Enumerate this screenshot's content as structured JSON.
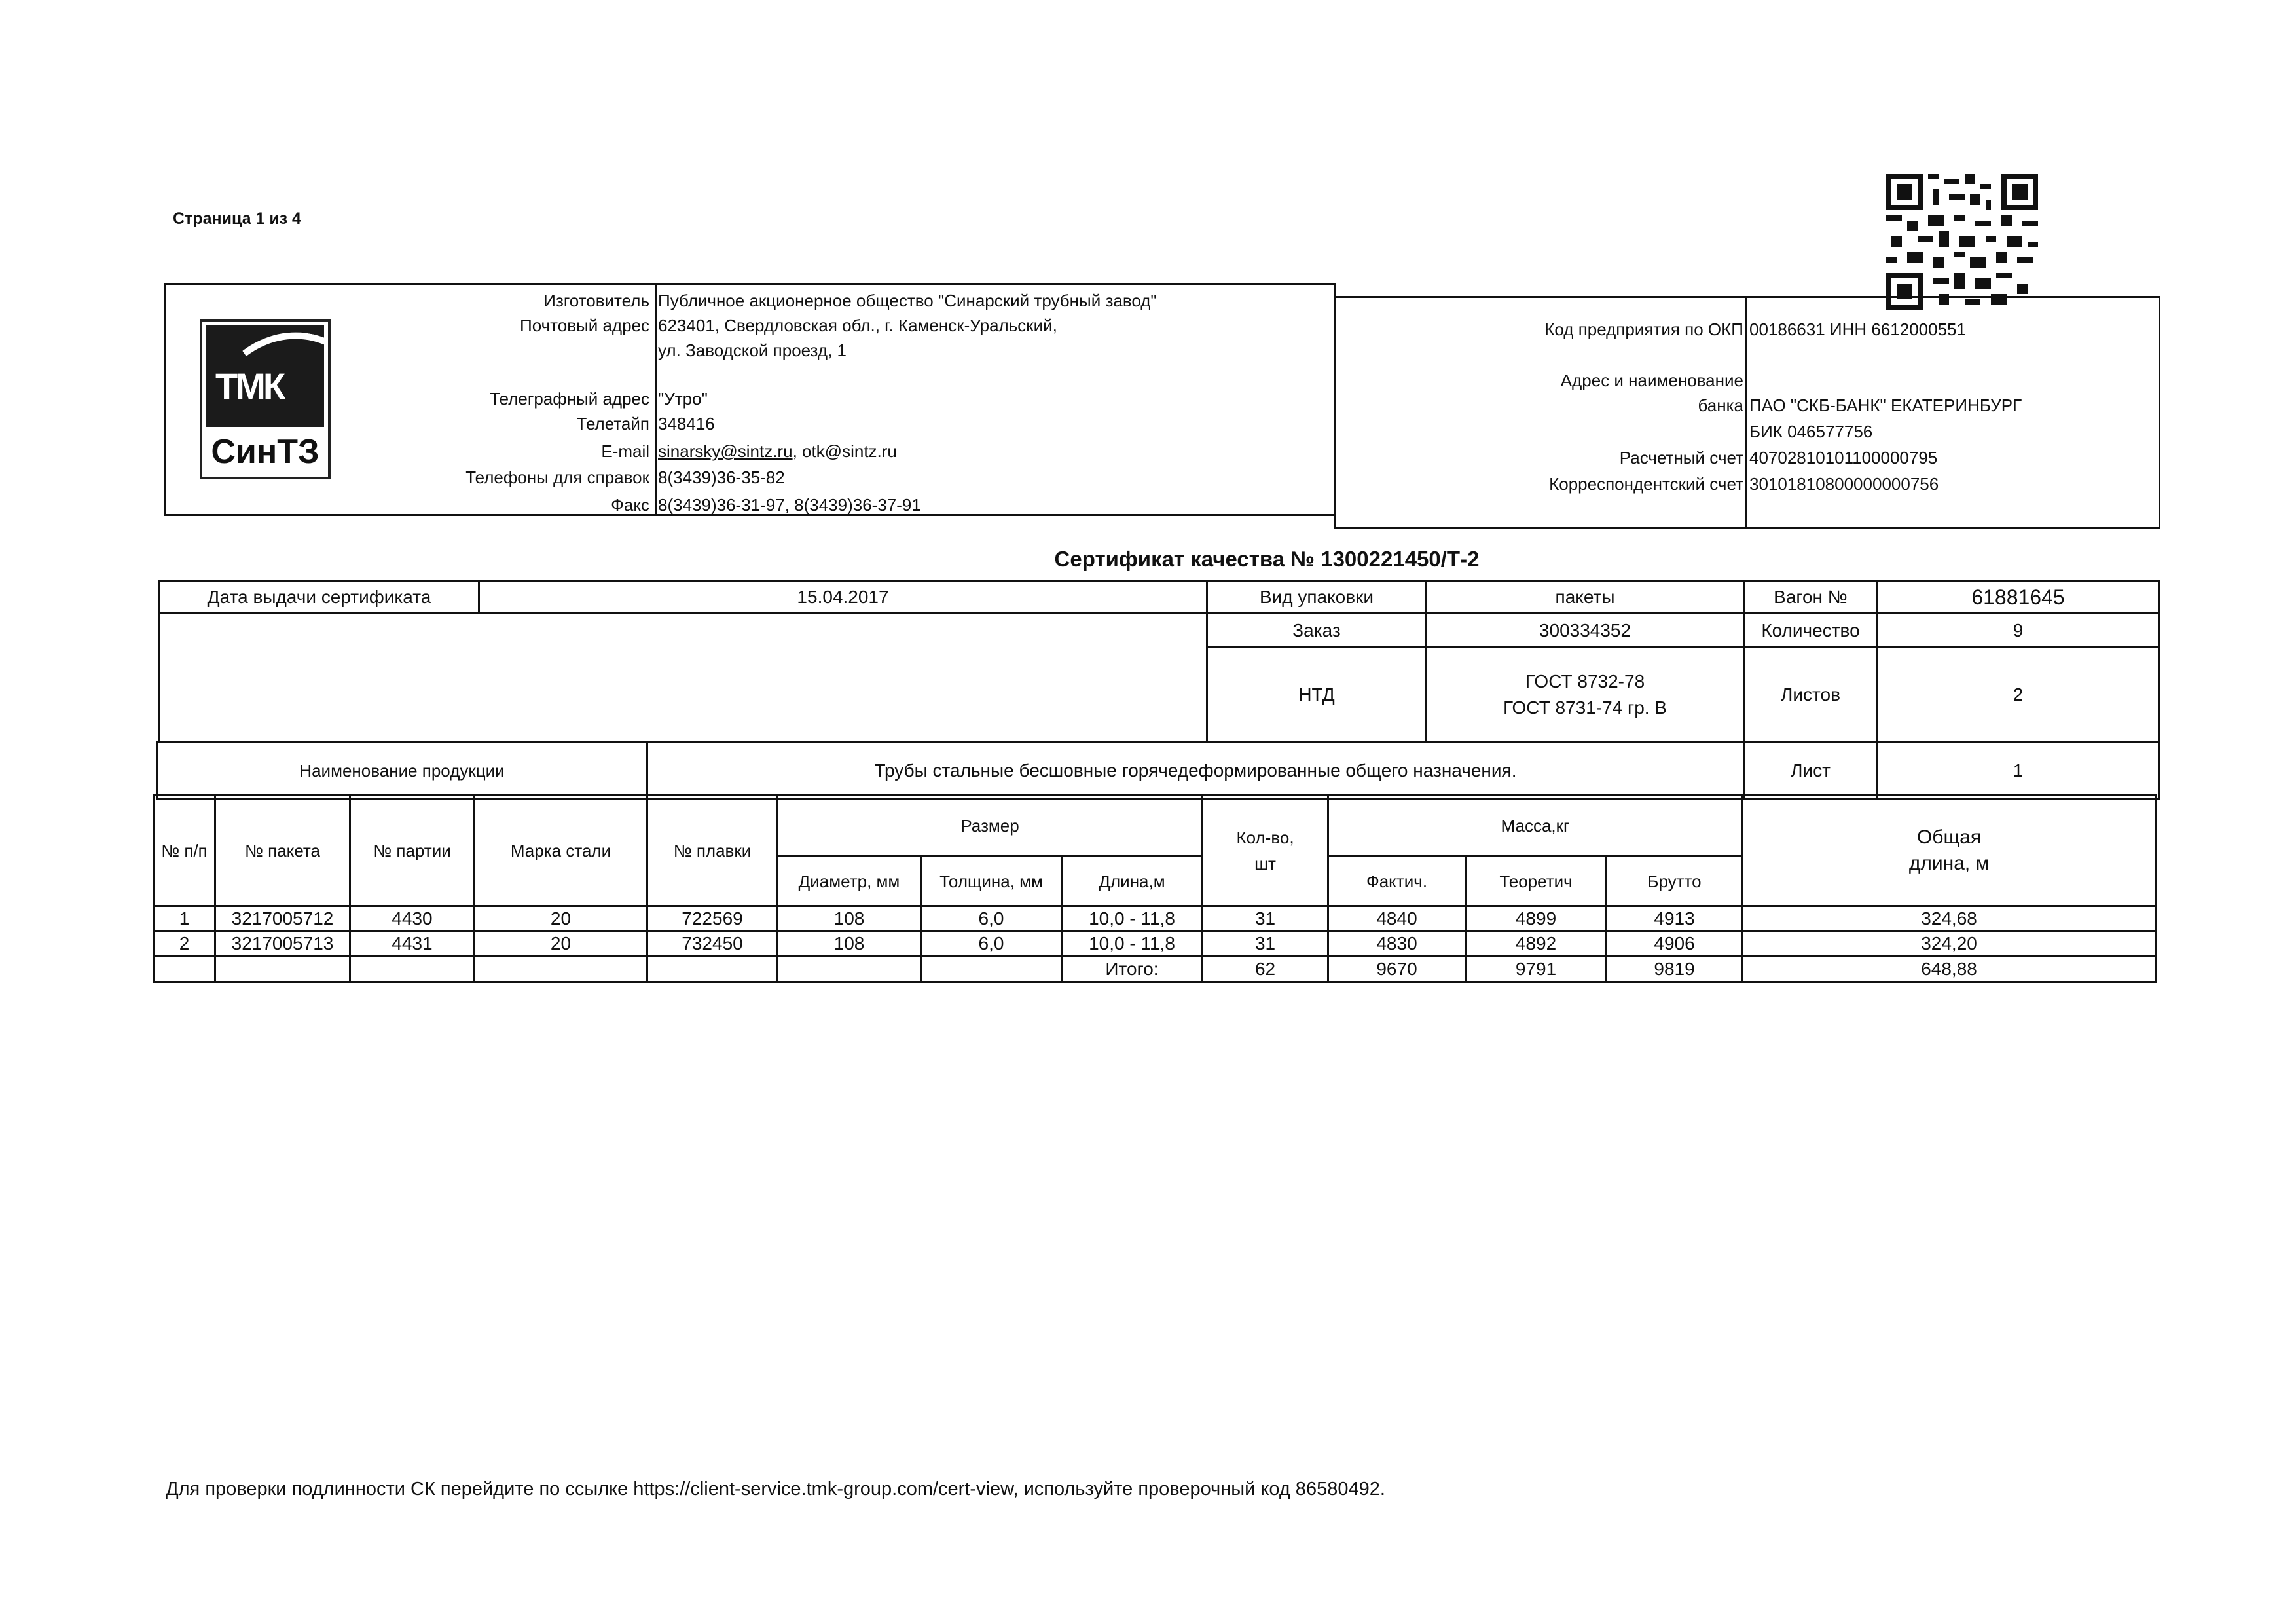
{
  "page_indicator": "Страница 1 из 4",
  "logo": {
    "top_text": "ТМК",
    "bottom_text": "СинТЗ"
  },
  "company": {
    "rows": [
      {
        "label": "Изготовитель",
        "value": "Публичное акционерное общество \"Синарский трубный завод\""
      },
      {
        "label": "Почтовый адрес",
        "value": "623401, Свердловская обл., г. Каменск-Уральский,"
      },
      {
        "label": "",
        "value": "ул. Заводской проезд, 1"
      },
      {
        "label": "Телеграфный адрес",
        "value": "\"Утро\""
      },
      {
        "label": "Телетайп",
        "value": "348416"
      },
      {
        "label": "E-mail",
        "value": "otk@sintz.ru",
        "email_link": "sinarsky@sintz.ru"
      },
      {
        "label": "Телефоны для справок",
        "value": "8(3439)36-35-82"
      },
      {
        "label": "Факс",
        "value": "8(3439)36-31-97, 8(3439)36-37-91"
      }
    ]
  },
  "bank": {
    "rows": [
      {
        "label": "Код предприятия по ОКП",
        "value": "00186631 ИНН 6612000551"
      },
      {
        "label": "Адрес и наименование",
        "value": ""
      },
      {
        "label": "банка",
        "value": "ПАО \"СКБ-БАНК\" ЕКАТЕРИНБУРГ"
      },
      {
        "label": "",
        "value": "БИК 046577756"
      },
      {
        "label": "Расчетный счет",
        "value": "40702810101100000795"
      },
      {
        "label": "Корреспондентский счет",
        "value": "30101810800000000756"
      }
    ]
  },
  "certificate": {
    "title": "Сертификат качества №  1300221450/Т-2",
    "issue_date_label": "Дата выдачи сертификата",
    "issue_date": "15.04.2017",
    "packaging_label": "Вид упаковки",
    "packaging": "пакеты",
    "order_label": "Заказ",
    "order": "300334352",
    "ntd_label": "НТД",
    "ntd_line1": "ГОСТ 8732-78",
    "ntd_line2": "ГОСТ 8731-74 гр. В",
    "wagon_label": "Вагон №",
    "wagon": "61881645",
    "quantity_label": "Количество",
    "quantity": "9",
    "sheets_label": "Листов",
    "sheets": "2",
    "product_label": "Наименование продукции",
    "product": "Трубы стальные бесшовные горячедеформированные общего назначения.",
    "sheet_label": "Лист",
    "sheet": "1"
  },
  "items_table": {
    "headers": {
      "num": "№ п/п",
      "package": "№ пакета",
      "batch": "№ партии",
      "steel": "Марка стали",
      "heat": "№ плавки",
      "size": "Размер",
      "diameter": "Диаметр, мм",
      "thickness": "Толщина, мм",
      "length": "Длина,м",
      "count": "Кол-во, шт",
      "mass": "Масса,кг",
      "actual": "Фактич.",
      "theoretical": "Теоретич",
      "gross": "Брутто",
      "total_length": "Общая длина, м"
    },
    "rows": [
      {
        "num": "1",
        "package": "3217005712",
        "batch": "4430",
        "steel": "20",
        "heat": "722569",
        "diameter": "108",
        "thickness": "6,0",
        "length": "10,0 - 11,8",
        "count": "31",
        "actual": "4840",
        "theoretical": "4899",
        "gross": "4913",
        "total_length": "324,68"
      },
      {
        "num": "2",
        "package": "3217005713",
        "batch": "4431",
        "steel": "20",
        "heat": "732450",
        "diameter": "108",
        "thickness": "6,0",
        "length": "10,0 - 11,8",
        "count": "31",
        "actual": "4830",
        "theoretical": "4892",
        "gross": "4906",
        "total_length": "324,20"
      }
    ],
    "total": {
      "label": "Итого:",
      "count": "62",
      "actual": "9670",
      "theoretical": "9791",
      "gross": "9819",
      "total_length": "648,88"
    }
  },
  "footer": "Для проверки подлинности СК перейдите по ссылке https://client-service.tmk-group.com/cert-view, используйте проверочный код  86580492."
}
